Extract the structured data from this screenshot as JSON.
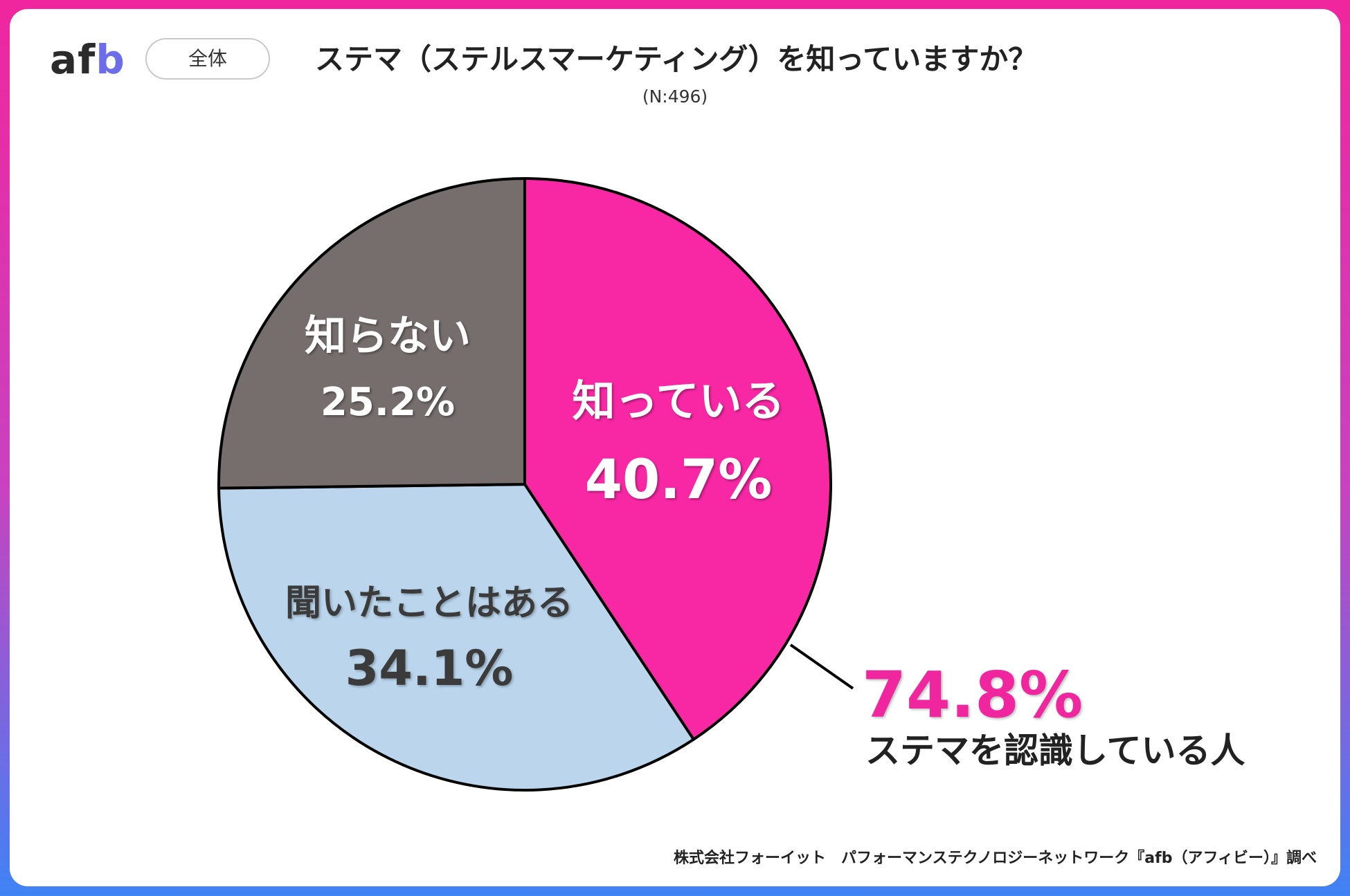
{
  "brand": {
    "logo_prefix": "af",
    "logo_accent": "b"
  },
  "header": {
    "pill_label": "全体",
    "title": "ステマ（ステルスマーケティング）を知っていますか？",
    "subtitle": "(N:496)"
  },
  "chart_data": {
    "type": "pie",
    "title": "ステマ（ステルスマーケティング）を知っていますか？",
    "subtitle": "(N:496)",
    "slices": [
      {
        "label": "知っている",
        "value": 40.7,
        "display": "40.7%",
        "color": "#f828a4"
      },
      {
        "label": "聞いたことはある",
        "value": 34.1,
        "display": "34.1%",
        "color": "#bad5ec"
      },
      {
        "label": "知らない",
        "value": 25.2,
        "display": "25.2%",
        "color": "#756e6d"
      }
    ],
    "callout": {
      "value": "74.8%",
      "text": "ステマを認識している人",
      "color": "#f0269e"
    }
  },
  "footer": {
    "credit": "株式会社フォーイット　パフォーマンステクノロジーネットワーク『afb（アフィビー）』調べ"
  }
}
